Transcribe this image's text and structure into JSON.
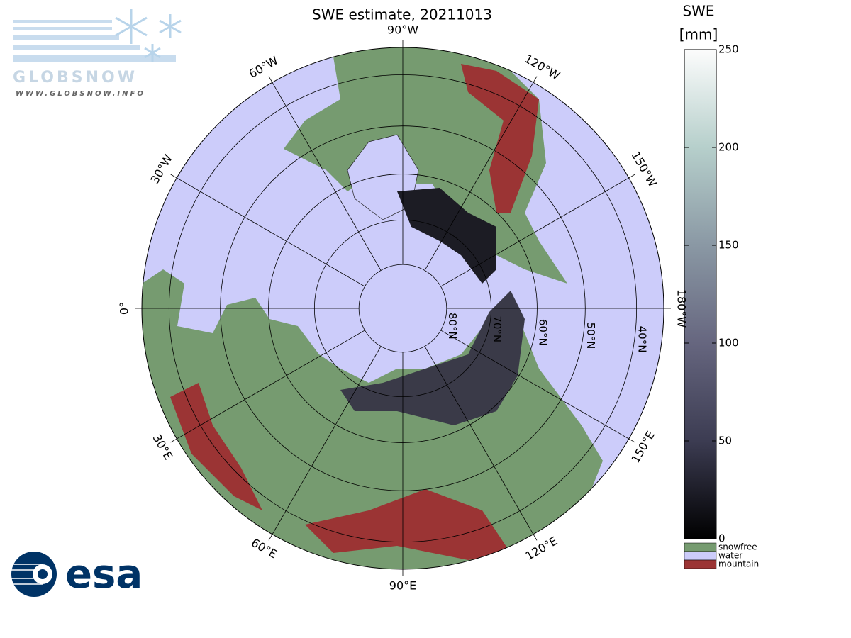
{
  "title": "SWE estimate, 20211013",
  "logo": {
    "name": "GLOBSNOW",
    "url": "WWW.GLOBSNOW.INFO",
    "agency": "esa"
  },
  "map": {
    "projection": "polar-stereographic",
    "latlim": [
      35,
      90
    ],
    "meridians": [
      {
        "value": -90,
        "label": "90°W"
      },
      {
        "value": -60,
        "label": "60°W"
      },
      {
        "value": -30,
        "label": "30°W"
      },
      {
        "value": 0,
        "label": "0°"
      },
      {
        "value": 30,
        "label": "30°E"
      },
      {
        "value": 60,
        "label": "60°E"
      },
      {
        "value": 90,
        "label": "90°E"
      },
      {
        "value": 120,
        "label": "120°E"
      },
      {
        "value": 150,
        "label": "150°E"
      },
      {
        "value": 180,
        "label": "180°W"
      },
      {
        "value": -150,
        "label": "150°W"
      },
      {
        "value": -120,
        "label": "120°W"
      }
    ],
    "parallels": [
      {
        "value": 80,
        "label": "80°N"
      },
      {
        "value": 70,
        "label": "70°N"
      },
      {
        "value": 60,
        "label": "60°N"
      },
      {
        "value": 50,
        "label": "50°N"
      },
      {
        "value": 40,
        "label": "40°N"
      }
    ]
  },
  "colorbar": {
    "label": [
      "SWE",
      "[mm]"
    ],
    "lim": [
      0,
      250
    ],
    "ticks": [
      0,
      50,
      100,
      150,
      200,
      250
    ]
  },
  "categories": [
    {
      "name": "snowfree",
      "color": "#769b70"
    },
    {
      "name": "water",
      "color": "#ccccfa"
    },
    {
      "name": "mountain",
      "color": "#9b3434"
    }
  ]
}
